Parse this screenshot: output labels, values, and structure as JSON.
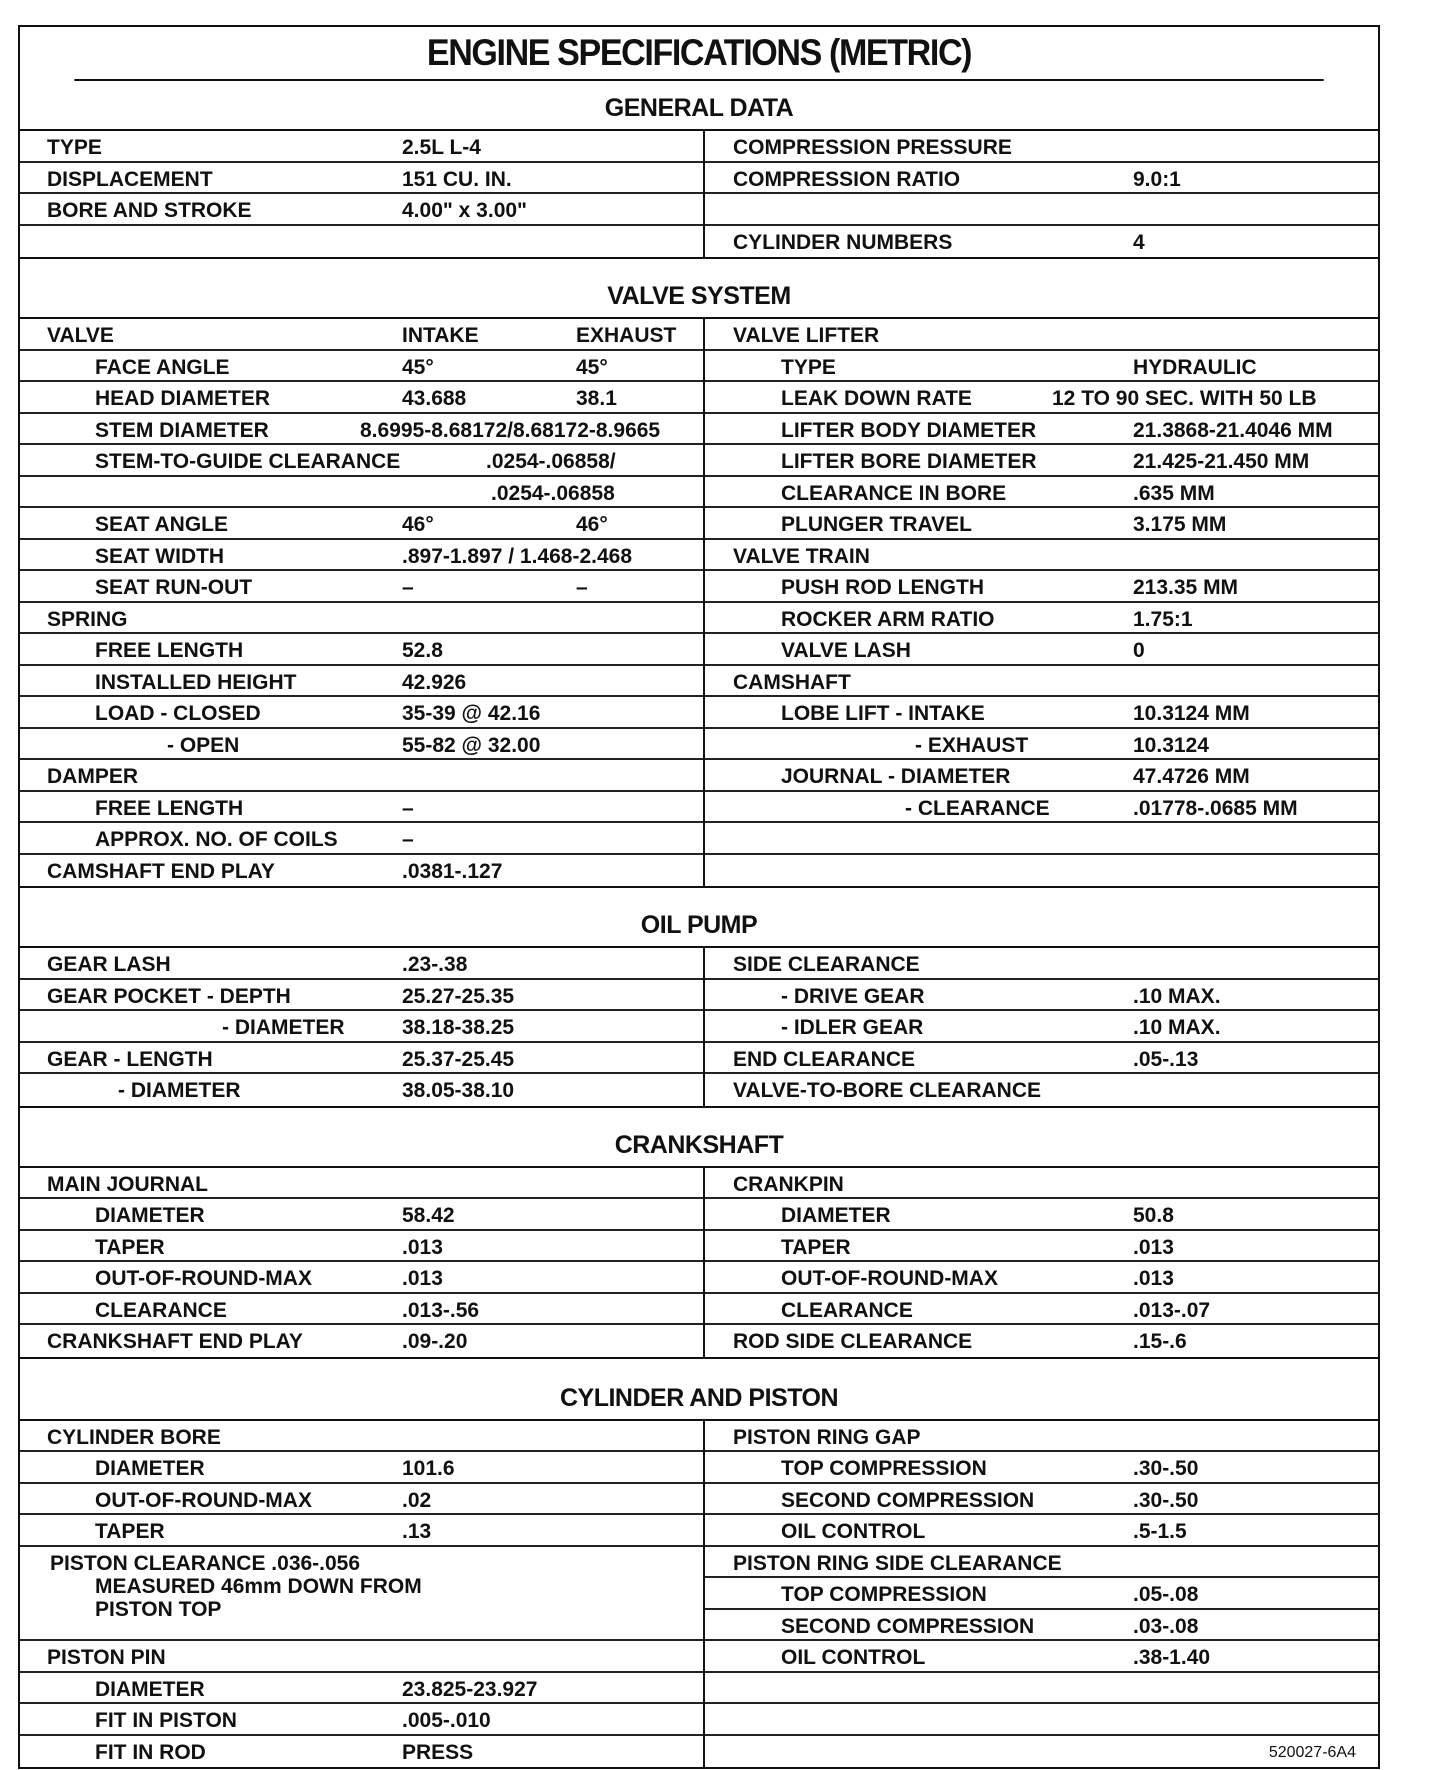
{
  "title": "ENGINE SPECIFICATIONS (METRIC)",
  "sections": [
    {
      "key": "general",
      "heading": "GENERAL DATA",
      "left": [
        {
          "label": "TYPE",
          "level": 0,
          "value": "2.5L  L-4"
        },
        {
          "label": "DISPLACEMENT",
          "level": 0,
          "value": "151 CU. IN."
        },
        {
          "label": "BORE AND STROKE",
          "level": 0,
          "value": "4.00\" x 3.00\""
        },
        {
          "label": "",
          "level": 0
        }
      ],
      "right": [
        {
          "label": "COMPRESSION PRESSURE",
          "level": 0
        },
        {
          "label": "COMPRESSION RATIO",
          "level": 0,
          "value": "9.0:1"
        },
        {
          "label": "",
          "level": 0
        },
        {
          "label": "CYLINDER NUMBERS",
          "level": 0,
          "value": "4"
        }
      ]
    },
    {
      "key": "valve",
      "heading": "VALVE SYSTEM",
      "left": [
        {
          "label": "VALVE",
          "level": 0,
          "value": "INTAKE",
          "value2": "EXHAUST"
        },
        {
          "label": "FACE ANGLE",
          "level": 1,
          "value": "45°",
          "value2": "45°"
        },
        {
          "label": "HEAD DIAMETER",
          "level": 1,
          "value": "43.688",
          "value2": "38.1"
        },
        {
          "label": "STEM DIAMETER",
          "level": 1,
          "value": "8.6995-8.68172/8.68172-8.9665"
        },
        {
          "label": "STEM-TO-GUIDE CLEARANCE",
          "level": 1,
          "value": ".0254-.06858/"
        },
        {
          "label": "",
          "level": 1,
          "value": ".0254-.06858"
        },
        {
          "label": "SEAT ANGLE",
          "level": 1,
          "value": "46°",
          "value2": "46°"
        },
        {
          "label": "SEAT WIDTH",
          "level": 1,
          "value": ".897-1.897 / 1.468-2.468"
        },
        {
          "label": "SEAT RUN-OUT",
          "level": 1,
          "value": "–",
          "value2": "–"
        },
        {
          "label": "SPRING",
          "level": 0
        },
        {
          "label": "FREE LENGTH",
          "level": 1,
          "value": "52.8"
        },
        {
          "label": "INSTALLED HEIGHT",
          "level": 1,
          "value": "42.926"
        },
        {
          "label": "LOAD - CLOSED",
          "level": 1,
          "value": "35-39 @ 42.16"
        },
        {
          "label": "- OPEN",
          "level": 2,
          "value": "55-82 @ 32.00"
        },
        {
          "label": "DAMPER",
          "level": 0
        },
        {
          "label": "FREE LENGTH",
          "level": 1,
          "value": "–"
        },
        {
          "label": "APPROX. NO. OF COILS",
          "level": 1,
          "value": "–"
        },
        {
          "label": "CAMSHAFT END PLAY",
          "level": 0,
          "value": ".0381-.127"
        }
      ],
      "right": [
        {
          "label": "VALVE LIFTER",
          "level": 0
        },
        {
          "label": "TYPE",
          "level": 1,
          "value": "HYDRAULIC"
        },
        {
          "label": "LEAK DOWN RATE",
          "level": 1,
          "value": "12 TO 90 SEC. WITH 50 LB"
        },
        {
          "label": "LIFTER BODY DIAMETER",
          "level": 1,
          "value": "21.3868-21.4046 MM"
        },
        {
          "label": "LIFTER BORE DIAMETER",
          "level": 1,
          "value": "21.425-21.450 MM"
        },
        {
          "label": "CLEARANCE IN BORE",
          "level": 1,
          "value": ".635 MM"
        },
        {
          "label": "PLUNGER TRAVEL",
          "level": 1,
          "value": "3.175 MM"
        },
        {
          "label": "VALVE TRAIN",
          "level": 0
        },
        {
          "label": "PUSH ROD LENGTH",
          "level": 1,
          "value": "213.35 MM"
        },
        {
          "label": "ROCKER ARM RATIO",
          "level": 1,
          "value": "1.75:1"
        },
        {
          "label": "VALVE LASH",
          "level": 1,
          "value": "0"
        },
        {
          "label": "CAMSHAFT",
          "level": 0
        },
        {
          "label": "LOBE LIFT - INTAKE",
          "level": 1,
          "value": "10.3124 MM"
        },
        {
          "label": "- EXHAUST",
          "level": 2,
          "value": "10.3124"
        },
        {
          "label": "JOURNAL - DIAMETER",
          "level": 1,
          "value": "47.4726 MM"
        },
        {
          "label": "- CLEARANCE",
          "level": 2,
          "value": ".01778-.0685 MM"
        },
        {
          "label": "",
          "level": 0
        },
        {
          "label": "",
          "level": 0
        }
      ]
    },
    {
      "key": "oil",
      "heading": "OIL PUMP",
      "left": [
        {
          "label": "GEAR LASH",
          "level": 0,
          "value": ".23-.38"
        },
        {
          "label": "GEAR POCKET - DEPTH",
          "level": 0,
          "value": "25.27-25.35"
        },
        {
          "label": "- DIAMETER",
          "level": 2,
          "value": "38.18-38.25"
        },
        {
          "label": "GEAR - LENGTH",
          "level": 0,
          "value": "25.37-25.45"
        },
        {
          "label": "- DIAMETER",
          "level": 2,
          "value": "38.05-38.10"
        }
      ],
      "right": [
        {
          "label": "SIDE CLEARANCE",
          "level": 0
        },
        {
          "label": "- DRIVE GEAR",
          "level": 1,
          "value": ".10 MAX."
        },
        {
          "label": "- IDLER GEAR",
          "level": 1,
          "value": ".10 MAX."
        },
        {
          "label": "END CLEARANCE",
          "level": 0,
          "value": ".05-.13"
        },
        {
          "label": "VALVE-TO-BORE CLEARANCE",
          "level": 0
        }
      ]
    },
    {
      "key": "crank",
      "heading": "CRANKSHAFT",
      "left": [
        {
          "label": "MAIN JOURNAL",
          "level": 0
        },
        {
          "label": "DIAMETER",
          "level": 1,
          "value": "58.42"
        },
        {
          "label": "TAPER",
          "level": 1,
          "value": ".013"
        },
        {
          "label": "OUT-OF-ROUND-MAX",
          "level": 1,
          "value": ".013"
        },
        {
          "label": "CLEARANCE",
          "level": 1,
          "value": ".013-.56"
        },
        {
          "label": "CRANKSHAFT END PLAY",
          "level": 0,
          "value": ".09-.20"
        }
      ],
      "right": [
        {
          "label": "CRANKPIN",
          "level": 0
        },
        {
          "label": "DIAMETER",
          "level": 1,
          "value": "50.8"
        },
        {
          "label": "TAPER",
          "level": 1,
          "value": ".013"
        },
        {
          "label": "OUT-OF-ROUND-MAX",
          "level": 1,
          "value": ".013"
        },
        {
          "label": "CLEARANCE",
          "level": 1,
          "value": ".013-.07"
        },
        {
          "label": "ROD SIDE CLEARANCE",
          "level": 0,
          "value": ".15-.6"
        }
      ]
    },
    {
      "key": "cyl",
      "heading": "CYLINDER AND PISTON",
      "left": [
        {
          "label": "CYLINDER BORE",
          "level": 0
        },
        {
          "label": "DIAMETER",
          "level": 1,
          "value": "101.6"
        },
        {
          "label": "OUT-OF-ROUND-MAX",
          "level": 1,
          "value": ".02"
        },
        {
          "label": "TAPER",
          "level": 1,
          "value": ".13"
        },
        {
          "label": "PISTON CLEARANCE .036-.056",
          "level": 0,
          "lines": [
            "MEASURED 46mm DOWN FROM",
            "PISTON TOP"
          ]
        },
        {
          "label": "PISTON PIN",
          "level": 0
        },
        {
          "label": "DIAMETER",
          "level": 1,
          "value": "23.825-23.927"
        },
        {
          "label": "FIT IN PISTON",
          "level": 1,
          "value": ".005-.010"
        },
        {
          "label": "FIT IN ROD",
          "level": 1,
          "value": "PRESS"
        }
      ],
      "right": [
        {
          "label": "PISTON RING GAP",
          "level": 0
        },
        {
          "label": "TOP COMPRESSION",
          "level": 1,
          "value": ".30-.50"
        },
        {
          "label": "SECOND COMPRESSION",
          "level": 1,
          "value": ".30-.50"
        },
        {
          "label": "OIL CONTROL",
          "level": 1,
          "value": ".5-1.5"
        },
        {
          "label": "PISTON RING SIDE CLEARANCE",
          "level": 0
        },
        {
          "label": "TOP COMPRESSION",
          "level": 1,
          "value": ".05-.08"
        },
        {
          "label": "SECOND COMPRESSION",
          "level": 1,
          "value": ".03-.08"
        },
        {
          "label": "OIL CONTROL",
          "level": 1,
          "value": ".38-1.40"
        },
        {
          "label": "",
          "level": 0
        },
        {
          "label": "",
          "level": 0
        },
        {
          "label": "",
          "level": 0
        }
      ]
    }
  ],
  "figure_code": "520027-6A4"
}
